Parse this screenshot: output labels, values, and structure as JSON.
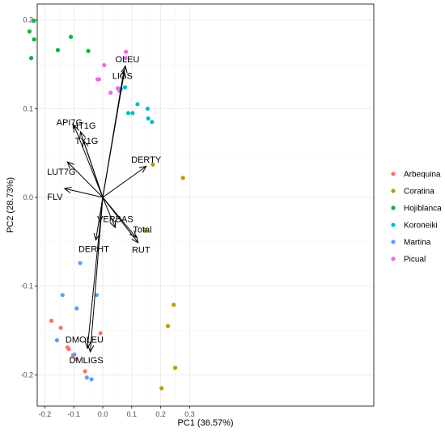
{
  "chart_data": {
    "type": "scatter",
    "title": "",
    "xlabel": "PC1 (36.57%)",
    "ylabel": "PC2 (28.73%)",
    "xlim": [
      -0.275,
      0.3
    ],
    "ylim": [
      -0.235,
      0.22
    ],
    "x_ticks": [
      -0.2,
      -0.1,
      0.0,
      0.1,
      0.2,
      0.3
    ],
    "x_tick_labels": [
      "-0.2",
      "-0.1",
      "0.0",
      "0.1",
      "0.2",
      "0.3"
    ],
    "y_ticks": [
      -0.2,
      -0.1,
      0.0,
      0.1,
      0.2
    ],
    "y_tick_labels": [
      "-0.2",
      "-0.1",
      "0.0",
      "0.1",
      "0.2"
    ],
    "grid": true,
    "legend_position": "right",
    "series": [
      {
        "name": "Arbequina",
        "color": "#F8766D",
        "points": [
          [
            -0.177,
            -0.139
          ],
          [
            -0.145,
            -0.147
          ],
          [
            -0.122,
            -0.169
          ],
          [
            -0.117,
            -0.171
          ],
          [
            -0.103,
            -0.178
          ],
          [
            -0.092,
            -0.182
          ],
          [
            -0.061,
            -0.196
          ],
          [
            -0.008,
            -0.153
          ]
        ]
      },
      {
        "name": "Coratina",
        "color": "#B79F00",
        "points": [
          [
            0.173,
            0.037
          ],
          [
            0.277,
            0.022
          ],
          [
            0.148,
            -0.037
          ],
          [
            0.245,
            -0.121
          ],
          [
            0.225,
            -0.145
          ],
          [
            0.25,
            -0.192
          ],
          [
            0.203,
            -0.215
          ]
        ]
      },
      {
        "name": "Hojiblanca",
        "color": "#00BA38",
        "points": [
          [
            -0.238,
            0.199
          ],
          [
            -0.253,
            0.187
          ],
          [
            -0.237,
            0.178
          ],
          [
            -0.11,
            0.181
          ],
          [
            -0.247,
            0.157
          ],
          [
            -0.155,
            0.166
          ],
          [
            -0.05,
            0.165
          ]
        ]
      },
      {
        "name": "Koroneiki",
        "color": "#00BFC4",
        "points": [
          [
            0.062,
            0.122
          ],
          [
            0.077,
            0.124
          ],
          [
            0.12,
            0.105
          ],
          [
            0.155,
            0.1
          ],
          [
            0.088,
            0.095
          ],
          [
            0.103,
            0.095
          ],
          [
            0.157,
            0.089
          ],
          [
            0.17,
            0.085
          ]
        ]
      },
      {
        "name": "Martina",
        "color": "#619CFF",
        "points": [
          [
            -0.078,
            -0.074
          ],
          [
            -0.139,
            -0.11
          ],
          [
            -0.021,
            -0.11
          ],
          [
            -0.09,
            -0.125
          ],
          [
            -0.158,
            -0.161
          ],
          [
            -0.098,
            -0.177
          ],
          [
            -0.055,
            -0.203
          ],
          [
            -0.039,
            -0.205
          ]
        ]
      },
      {
        "name": "Picual",
        "color": "#F564E3",
        "points": [
          [
            0.08,
            0.164
          ],
          [
            0.078,
            0.157
          ],
          [
            0.005,
            0.149
          ],
          [
            -0.018,
            0.133
          ],
          [
            -0.013,
            0.133
          ],
          [
            0.052,
            0.123
          ],
          [
            0.058,
            0.12
          ],
          [
            0.027,
            0.118
          ]
        ]
      }
    ],
    "loadings": [
      {
        "name": "OLEU",
        "x": 0.078,
        "y": 0.148
      },
      {
        "name": "LIGS",
        "x": 0.073,
        "y": 0.143
      },
      {
        "name": "API7G",
        "x": -0.099,
        "y": 0.081
      },
      {
        "name": "HT1G",
        "x": -0.077,
        "y": 0.074
      },
      {
        "name": "TY1G",
        "x": -0.067,
        "y": 0.064
      },
      {
        "name": "DERTY",
        "x": 0.15,
        "y": 0.035
      },
      {
        "name": "LUT7G",
        "x": -0.122,
        "y": 0.04
      },
      {
        "name": "FLV",
        "x": -0.132,
        "y": 0.01
      },
      {
        "name": "VERBAS",
        "x": 0.043,
        "y": -0.034
      },
      {
        "name": "Total",
        "x": 0.115,
        "y": -0.045
      },
      {
        "name": "RUT",
        "x": 0.122,
        "y": -0.051
      },
      {
        "name": "DERHT",
        "x": -0.024,
        "y": -0.048
      },
      {
        "name": "DMOLEU",
        "x": -0.053,
        "y": -0.17
      },
      {
        "name": "DMLIGS",
        "x": -0.043,
        "y": -0.174
      }
    ],
    "loading_labels": [
      {
        "name": "OLEU",
        "x": 0.085,
        "y": 0.156
      },
      {
        "name": "LIGS",
        "x": 0.068,
        "y": 0.137
      },
      {
        "name": "API7G",
        "x": -0.115,
        "y": 0.085
      },
      {
        "name": "HT1G",
        "x": -0.065,
        "y": 0.081
      },
      {
        "name": "TY1G",
        "x": -0.056,
        "y": 0.064
      },
      {
        "name": "DERTY",
        "x": 0.15,
        "y": 0.043
      },
      {
        "name": "LUT7G",
        "x": -0.143,
        "y": 0.029
      },
      {
        "name": "FLV",
        "x": -0.165,
        "y": 0.001
      },
      {
        "name": "VERBAS",
        "x": 0.043,
        "y": -0.024
      },
      {
        "name": "Total",
        "x": 0.137,
        "y": -0.036
      },
      {
        "name": "RUT",
        "x": 0.132,
        "y": -0.059
      },
      {
        "name": "DERHT",
        "x": -0.031,
        "y": -0.058
      },
      {
        "name": "DMOLEU",
        "x": -0.063,
        "y": -0.16
      },
      {
        "name": "DMLIGS",
        "x": -0.057,
        "y": -0.183
      }
    ]
  }
}
